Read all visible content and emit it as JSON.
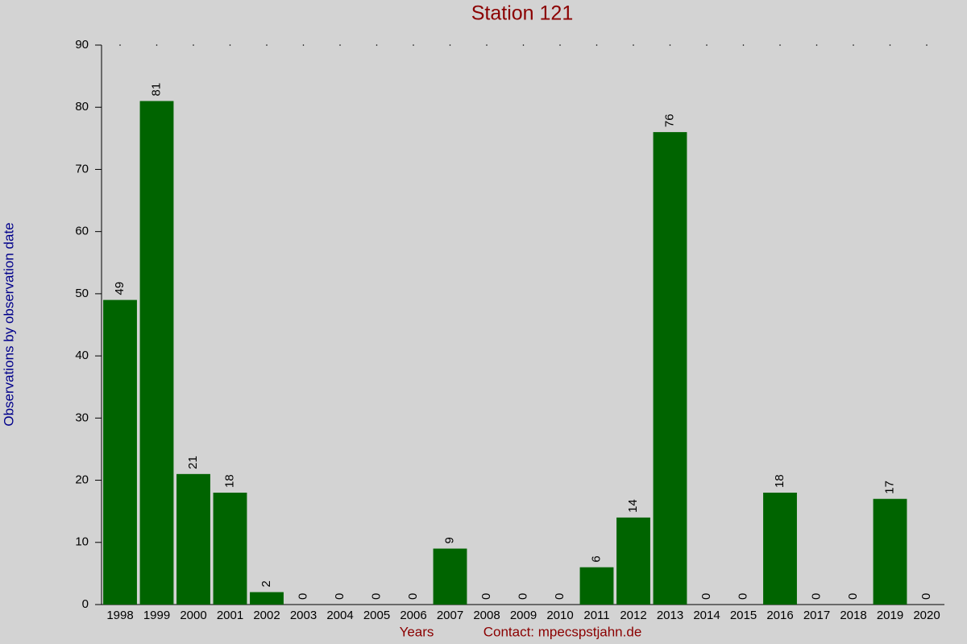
{
  "chart_data": {
    "type": "bar",
    "title": "Station 121",
    "y_label": "Observations by observation date",
    "x_label": "Years",
    "annotation": "Contact: mpecspstjahn.de",
    "categories": [
      "1998",
      "1999",
      "2000",
      "2001",
      "2002",
      "2003",
      "2004",
      "2005",
      "2006",
      "2007",
      "2008",
      "2009",
      "2010",
      "2011",
      "2012",
      "2013",
      "2014",
      "2015",
      "2016",
      "2017",
      "2018",
      "2019",
      "2020"
    ],
    "values": [
      49,
      81,
      21,
      18,
      2,
      0,
      0,
      0,
      0,
      9,
      0,
      0,
      0,
      6,
      14,
      76,
      0,
      0,
      18,
      0,
      0,
      17,
      0
    ],
    "color": "#006400",
    "ylim": [
      0,
      90
    ],
    "yticks": [
      0,
      10,
      20,
      30,
      40,
      50,
      60,
      70,
      80,
      90
    ]
  }
}
